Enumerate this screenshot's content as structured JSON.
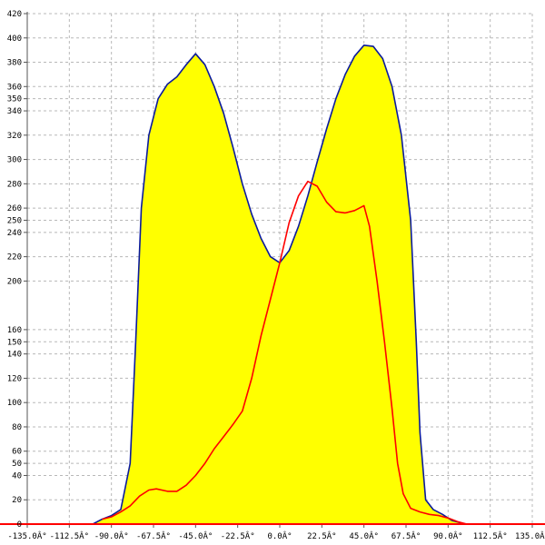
{
  "chart_data": {
    "type": "area",
    "title": "",
    "xlabel": "",
    "ylabel": "",
    "xlim": [
      -135,
      135
    ],
    "ylim": [
      0,
      420
    ],
    "grid": true,
    "x_ticks": [
      -135,
      -112.5,
      -90,
      -67.5,
      -45,
      -22.5,
      0,
      22.5,
      45,
      67.5,
      90,
      112.5,
      135
    ],
    "x_tick_labels": [
      "-135.0Â°",
      "-112.5Â°",
      "-90.0Â°",
      "-67.5Â°",
      "-45.0Â°",
      "-22.5Â°",
      "0.0Â°",
      "22.5Â°",
      "45.0Â°",
      "67.5Â°",
      "90.0Â°",
      "112.5Â°",
      "135.0Â°"
    ],
    "y_ticks": [
      0,
      20,
      40,
      50,
      60,
      80,
      100,
      120,
      140,
      150,
      160,
      200,
      220,
      240,
      250,
      260,
      280,
      300,
      320,
      340,
      350,
      360,
      380,
      400,
      420
    ],
    "y_tick_labels": [
      "0",
      "20",
      "40",
      "50",
      "60",
      "80",
      "100",
      "120",
      "140",
      "150",
      "160",
      "200",
      "220",
      "240",
      "250",
      "260",
      "280",
      "300",
      "320",
      "340",
      "350",
      "360",
      "380",
      "400",
      "420"
    ],
    "series": [
      {
        "color": "#0a1a9c",
        "fill": "#ffff00",
        "points": [
          [
            -100,
            0
          ],
          [
            -95,
            4
          ],
          [
            -90,
            7
          ],
          [
            -85,
            12
          ],
          [
            -80,
            50
          ],
          [
            -77,
            150
          ],
          [
            -74,
            260
          ],
          [
            -70,
            320
          ],
          [
            -65,
            350
          ],
          [
            -60,
            362
          ],
          [
            -55,
            368
          ],
          [
            -50,
            378
          ],
          [
            -45,
            387
          ],
          [
            -40,
            378
          ],
          [
            -35,
            360
          ],
          [
            -30,
            338
          ],
          [
            -25,
            310
          ],
          [
            -20,
            280
          ],
          [
            -15,
            255
          ],
          [
            -10,
            235
          ],
          [
            -5,
            220
          ],
          [
            0,
            215
          ],
          [
            5,
            225
          ],
          [
            10,
            245
          ],
          [
            15,
            270
          ],
          [
            20,
            298
          ],
          [
            25,
            325
          ],
          [
            30,
            350
          ],
          [
            35,
            370
          ],
          [
            40,
            385
          ],
          [
            45,
            394
          ],
          [
            50,
            393
          ],
          [
            55,
            383
          ],
          [
            60,
            360
          ],
          [
            65,
            320
          ],
          [
            70,
            250
          ],
          [
            73,
            150
          ],
          [
            75,
            75
          ],
          [
            78,
            20
          ],
          [
            82,
            12
          ],
          [
            87,
            8
          ],
          [
            92,
            3
          ],
          [
            97,
            1
          ],
          [
            100,
            0
          ]
        ]
      },
      {
        "color": "#ff0000",
        "points": [
          [
            -95,
            4
          ],
          [
            -90,
            6
          ],
          [
            -85,
            10
          ],
          [
            -80,
            15
          ],
          [
            -75,
            23
          ],
          [
            -70,
            28
          ],
          [
            -66,
            29
          ],
          [
            -60,
            27
          ],
          [
            -55,
            27
          ],
          [
            -50,
            32
          ],
          [
            -45,
            40
          ],
          [
            -40,
            50
          ],
          [
            -35,
            62
          ],
          [
            -30,
            72
          ],
          [
            -25,
            82
          ],
          [
            -20,
            93
          ],
          [
            -15,
            120
          ],
          [
            -10,
            155
          ],
          [
            -5,
            185
          ],
          [
            0,
            215
          ],
          [
            5,
            248
          ],
          [
            10,
            270
          ],
          [
            15,
            282
          ],
          [
            20,
            278
          ],
          [
            25,
            265
          ],
          [
            30,
            257
          ],
          [
            35,
            256
          ],
          [
            40,
            258
          ],
          [
            45,
            262
          ],
          [
            48,
            245
          ],
          [
            52,
            200
          ],
          [
            56,
            150
          ],
          [
            60,
            95
          ],
          [
            63,
            50
          ],
          [
            66,
            25
          ],
          [
            70,
            13
          ],
          [
            75,
            10
          ],
          [
            80,
            8
          ],
          [
            85,
            7
          ],
          [
            90,
            5
          ],
          [
            95,
            2
          ],
          [
            100,
            0
          ]
        ]
      }
    ]
  }
}
